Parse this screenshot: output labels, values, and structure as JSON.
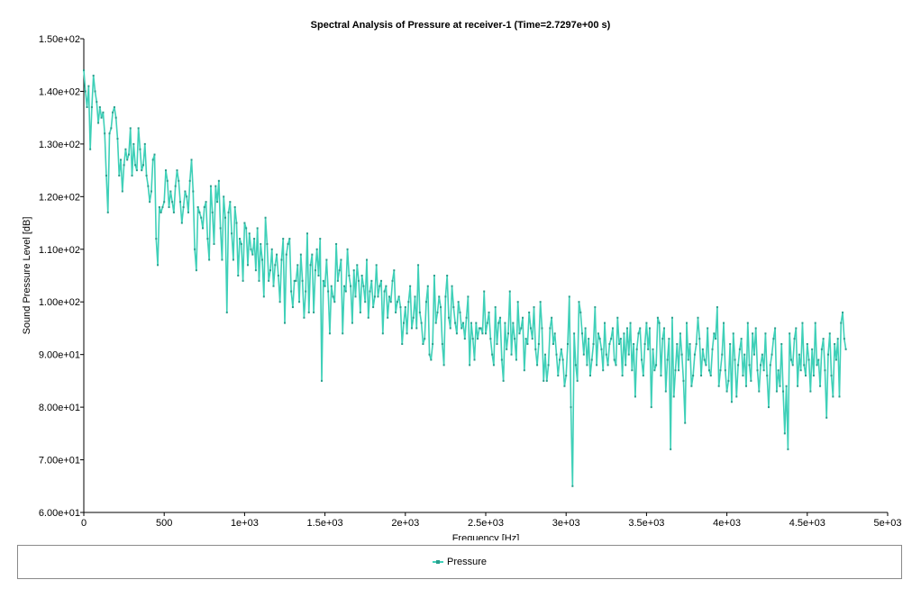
{
  "chart_data": {
    "type": "line",
    "title": "Spectral Analysis of Pressure at receiver-1 (Time=2.7297e+00 s)",
    "xlabel": "Frequency [Hz]",
    "ylabel": "Sound Pressure Level [dB]",
    "xlim": [
      0,
      5000
    ],
    "ylim": [
      60,
      150
    ],
    "x_ticks": [
      0,
      500,
      1000,
      1500,
      2000,
      2500,
      3000,
      3500,
      4000,
      4500,
      5000
    ],
    "x_tick_labels": [
      "0",
      "500",
      "1e+03",
      "1.5e+03",
      "2e+03",
      "2.5e+03",
      "3e+03",
      "3.5e+03",
      "4e+03",
      "4.5e+03",
      "5e+03"
    ],
    "y_ticks": [
      60,
      70,
      80,
      90,
      100,
      110,
      120,
      130,
      140,
      150
    ],
    "y_tick_labels": [
      "6.00e+01",
      "7.00e+01",
      "8.00e+01",
      "9.00e+01",
      "1.00e+02",
      "1.10e+02",
      "1.20e+02",
      "1.30e+02",
      "1.40e+02",
      "1.50e+02"
    ],
    "grid": false,
    "legend": "bottom",
    "series": [
      {
        "name": "Pressure",
        "color": "#3fd0b8",
        "marker_color": "#2a9e8c",
        "x_start": 0,
        "x_step": 10,
        "values": [
          144,
          140,
          137,
          141,
          129,
          137,
          143,
          140,
          138,
          134,
          137,
          135,
          136,
          132,
          124,
          117,
          132,
          133,
          136,
          137,
          135,
          131,
          124,
          127,
          121,
          126,
          129,
          127,
          128,
          133,
          124,
          130,
          126,
          125,
          133,
          129,
          125,
          126,
          130,
          124,
          122,
          119,
          121,
          127,
          128,
          112,
          107,
          118,
          117,
          118,
          119,
          125,
          123,
          118,
          121,
          119,
          117,
          122,
          125,
          123,
          119,
          115,
          118,
          121,
          120,
          117,
          123,
          127,
          121,
          110,
          106,
          118,
          117,
          116,
          114,
          118,
          119,
          112,
          108,
          122,
          117,
          111,
          122,
          119,
          123,
          114,
          108,
          120,
          116,
          98,
          117,
          119,
          113,
          108,
          118,
          115,
          105,
          112,
          111,
          104,
          115,
          114,
          107,
          113,
          110,
          109,
          112,
          106,
          114,
          104,
          111,
          108,
          101,
          116,
          111,
          104,
          106,
          110,
          103,
          107,
          109,
          105,
          100,
          108,
          112,
          96,
          109,
          111,
          112,
          102,
          99,
          104,
          104,
          107,
          100,
          109,
          104,
          97,
          102,
          113,
          98,
          107,
          109,
          98,
          106,
          110,
          105,
          112,
          85,
          104,
          103,
          108,
          102,
          94,
          103,
          101,
          100,
          111,
          104,
          106,
          108,
          94,
          103,
          102,
          110,
          105,
          103,
          96,
          106,
          101,
          107,
          104,
          98,
          105,
          103,
          100,
          108,
          97,
          102,
          104,
          99,
          101,
          107,
          101,
          103,
          104,
          94,
          102,
          103,
          97,
          101,
          100,
          104,
          106,
          98,
          100,
          101,
          99,
          92,
          96,
          99,
          94,
          100,
          103,
          95,
          97,
          101,
          95,
          107,
          98,
          96,
          92,
          93,
          100,
          103,
          90,
          89,
          92,
          105,
          96,
          98,
          101,
          99,
          92,
          88,
          101,
          105,
          97,
          95,
          103,
          99,
          96,
          94,
          100,
          98,
          95,
          96,
          93,
          97,
          101,
          88,
          96,
          93,
          89,
          96,
          93,
          95,
          95,
          94,
          102,
          94,
          96,
          98,
          93,
          90,
          88,
          99,
          92,
          96,
          97,
          89,
          85,
          96,
          91,
          94,
          102,
          90,
          96,
          93,
          89,
          100,
          94,
          95,
          97,
          87,
          93,
          92,
          98,
          95,
          93,
          99,
          91,
          88,
          92,
          100,
          95,
          85,
          90,
          85,
          88,
          95,
          97,
          92,
          94,
          90,
          86,
          89,
          91,
          89,
          84,
          86,
          92,
          101,
          80,
          65,
          94,
          88,
          85,
          100,
          98,
          94,
          90,
          95,
          88,
          93,
          86,
          89,
          92,
          99,
          88,
          94,
          93,
          91,
          87,
          96,
          90,
          88,
          92,
          93,
          95,
          89,
          88,
          97,
          92,
          93,
          86,
          94,
          88,
          95,
          90,
          96,
          87,
          92,
          82,
          91,
          94,
          95,
          89,
          86,
          92,
          96,
          91,
          95,
          80,
          91,
          87,
          88,
          97,
          96,
          86,
          93,
          95,
          83,
          89,
          93,
          72,
          97,
          82,
          87,
          92,
          87,
          94,
          90,
          85,
          77,
          96,
          89,
          92,
          84,
          86,
          90,
          92,
          97,
          93,
          86,
          91,
          89,
          88,
          95,
          87,
          86,
          91,
          94,
          93,
          99,
          84,
          87,
          90,
          96,
          87,
          83,
          85,
          92,
          81,
          94,
          89,
          82,
          88,
          91,
          93,
          86,
          90,
          84,
          96,
          88,
          85,
          94,
          90,
          95,
          87,
          83,
          88,
          90,
          87,
          94,
          86,
          80,
          88,
          90,
          93,
          95,
          83,
          87,
          84,
          92,
          83,
          75,
          84,
          72,
          94,
          89,
          88,
          93,
          95,
          84,
          90,
          87,
          96,
          88,
          86,
          92,
          89,
          83,
          91,
          86,
          96,
          88,
          89,
          84,
          91,
          93,
          87,
          78,
          90,
          94,
          86,
          82,
          92,
          89,
          93,
          82,
          96,
          98,
          93,
          91
        ]
      }
    ]
  }
}
